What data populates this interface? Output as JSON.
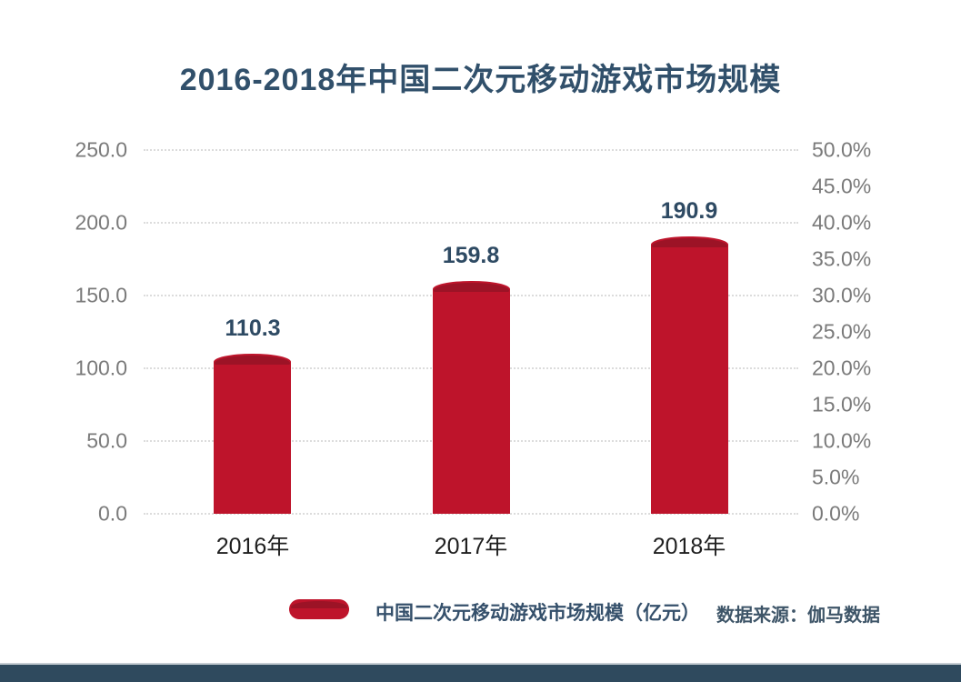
{
  "title": "2016-2018年中国二次元移动游戏市场规模",
  "source": "数据来源：伽马数据",
  "chart_data": {
    "type": "bar",
    "title": "2016-2018年中国二次元移动游戏市场规模",
    "categories": [
      "2016年",
      "2017年",
      "2018年"
    ],
    "series": [
      {
        "name": "中国二次元移动游戏市场规模（亿元）",
        "values": [
          110.3,
          159.8,
          190.9
        ]
      }
    ],
    "value_labels": [
      "110.3",
      "159.8",
      "190.9"
    ],
    "y_left": {
      "min": 0,
      "max": 250,
      "ticks": [
        "250.0",
        "200.0",
        "150.0",
        "100.0",
        "50.0",
        "0.0"
      ]
    },
    "y_right": {
      "min": 0,
      "max": 0.5,
      "ticks": [
        "50.0%",
        "45.0%",
        "40.0%",
        "35.0%",
        "30.0%",
        "25.0%",
        "20.0%",
        "15.0%",
        "10.0%",
        "5.0%",
        "0.0%"
      ]
    },
    "grid": "horizontal dotted",
    "legend_position": "bottom"
  },
  "colors": {
    "bar": "#be142b",
    "bar_cap": "#9c1326",
    "title_text": "#31506b",
    "axis_text": "#7a7a7a",
    "category_text": "#1f1f1f",
    "value_text": "#2e4a63",
    "footer_bar": "#2f4a5e",
    "background": "#ffffff"
  }
}
